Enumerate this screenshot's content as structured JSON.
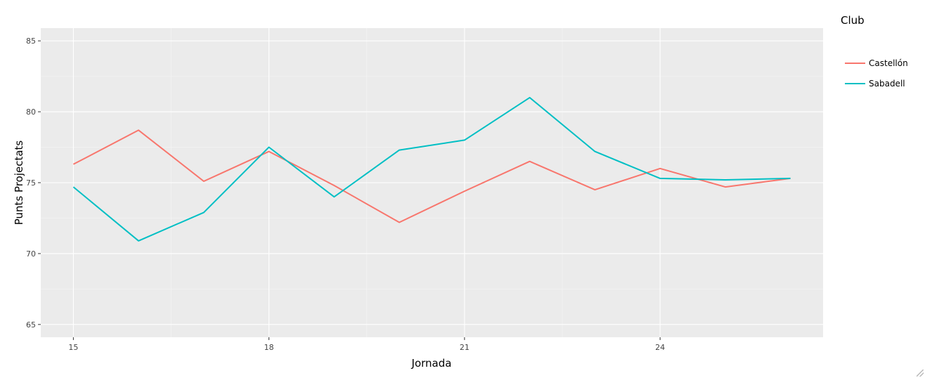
{
  "chart_data": {
    "type": "line",
    "xlabel": "Jornada",
    "ylabel": "Punts Projectats",
    "xlim": [
      14.5,
      26.5
    ],
    "ylim": [
      64.1,
      85.9
    ],
    "x_ticks": [
      {
        "value": 15,
        "label": "15"
      },
      {
        "value": 18,
        "label": "18"
      },
      {
        "value": 21,
        "label": "21"
      },
      {
        "value": 24,
        "label": "24"
      }
    ],
    "y_ticks": [
      {
        "value": 65,
        "label": "65"
      },
      {
        "value": 70,
        "label": "70"
      },
      {
        "value": 75,
        "label": "75"
      },
      {
        "value": 80,
        "label": "80"
      },
      {
        "value": 85,
        "label": "85"
      }
    ],
    "grid": true,
    "legend": {
      "title": "Club",
      "placement": "right"
    },
    "x": [
      15,
      16,
      17,
      18,
      19,
      20,
      21,
      22,
      23,
      24,
      25,
      26
    ],
    "series": [
      {
        "name": "Castellón",
        "color": "#F8766D",
        "values": [
          76.3,
          78.7,
          75.1,
          77.2,
          74.8,
          72.2,
          74.4,
          76.5,
          74.5,
          76.0,
          74.7,
          75.3
        ]
      },
      {
        "name": "Sabadell",
        "color": "#00BFC4",
        "values": [
          74.7,
          70.9,
          72.9,
          77.5,
          74.0,
          77.3,
          78.0,
          81.0,
          77.2,
          75.3,
          75.2,
          75.3
        ]
      }
    ]
  }
}
